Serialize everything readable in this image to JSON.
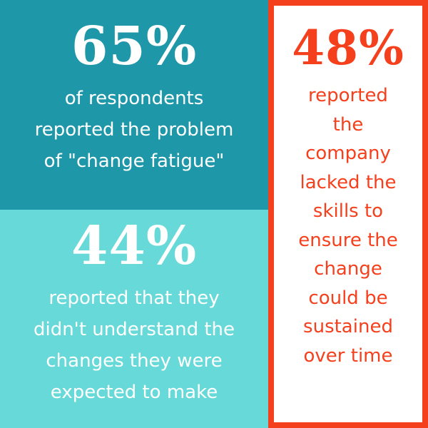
{
  "stats": [
    {
      "percent": "65%",
      "lines": [
        "of respondents",
        "reported the problem",
        "of \"change fatigue\""
      ],
      "colors": {
        "background": "#1e97a8",
        "text": "#ffffff"
      }
    },
    {
      "percent": "44%",
      "lines": [
        "reported that they",
        "didn't understand the",
        "changes they were",
        "expected to make"
      ],
      "colors": {
        "background": "#67d9d8",
        "text": "#ffffff"
      }
    },
    {
      "percent": "48%",
      "lines": [
        "reported",
        "the",
        "company",
        "lacked the",
        "skills to",
        "ensure the",
        "change",
        "could be",
        "sustained",
        "over time"
      ],
      "colors": {
        "background": "#ffffff",
        "text": "#f5401e",
        "border": "#f5401e"
      }
    }
  ]
}
